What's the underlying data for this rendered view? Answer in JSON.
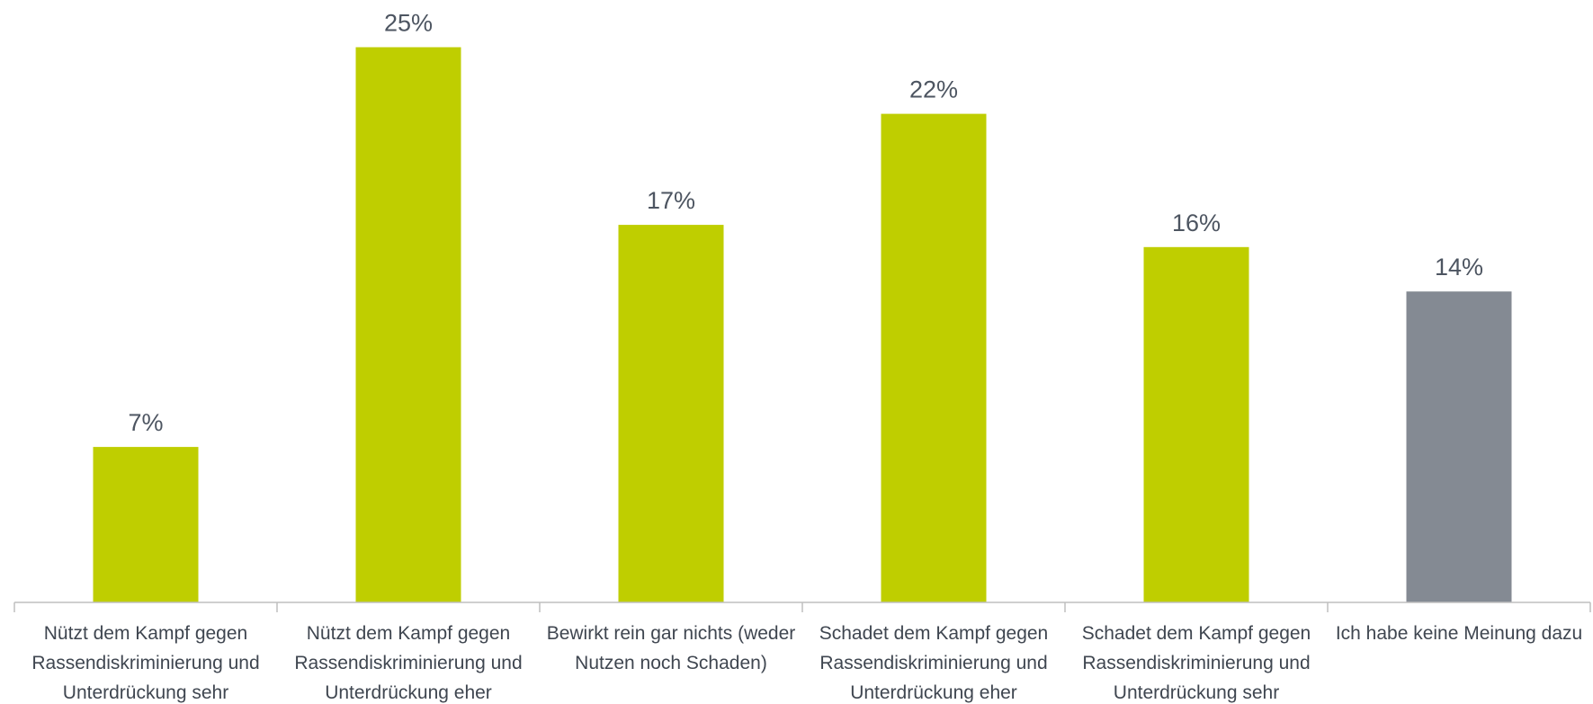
{
  "chart_data": {
    "type": "bar",
    "categories": [
      "Nützt dem Kampf gegen Rassendiskriminierung und Unterdrückung sehr",
      "Nützt dem Kampf gegen Rassendiskriminierung und Unterdrückung eher",
      "Bewirkt rein gar nichts (weder Nutzen noch Schaden)",
      "Schadet dem Kampf gegen Rassendiskriminierung und Unterdrückung eher",
      "Schadet dem Kampf gegen Rassendiskriminierung und Unterdrückung sehr",
      "Ich habe keine Meinung dazu"
    ],
    "values": [
      7,
      25,
      17,
      22,
      16,
      14
    ],
    "value_labels": [
      "7%",
      "25%",
      "17%",
      "22%",
      "16%",
      "14%"
    ],
    "colors": [
      "#bfce00",
      "#bfce00",
      "#bfce00",
      "#bfce00",
      "#bfce00",
      "#848a93"
    ]
  }
}
